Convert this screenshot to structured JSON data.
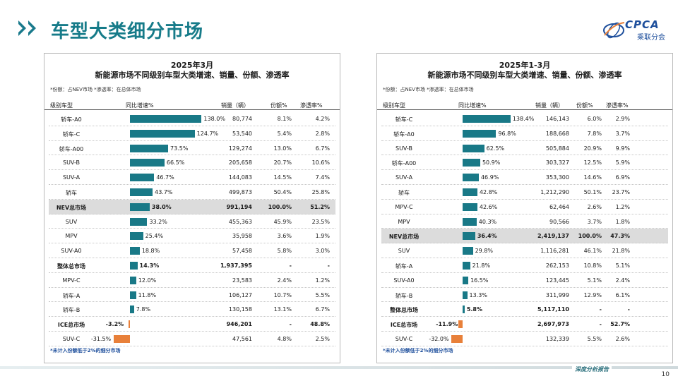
{
  "header": {
    "title": "车型大类细分市场",
    "logo_text": "CPCA",
    "logo_sub": "乘联分会"
  },
  "colors": {
    "accent": "#167b89",
    "bar_positive": "#197987",
    "bar_negative": "#e8803a",
    "highlight_row": "#dcdcdc"
  },
  "footer": {
    "tag": "深度分析报告",
    "page": "10"
  },
  "panels": [
    {
      "title1": "2025年3月",
      "title2": "新能源市场不同级别车型大类增速、销量、份额、渗透率",
      "note": "*份额：占NEV市场  *渗透率：在总体市场",
      "headers": {
        "cat": "级别车型",
        "growth": "同比增速%",
        "sales": "销量（辆）",
        "share": "份额%",
        "pen": "渗透率%"
      },
      "footnote": "*未计入份额低于2%的细分市场",
      "rows": [
        {
          "cat": "轿车-A0",
          "growth": 138.0,
          "growth_label": "138.0%",
          "sales": "80,774",
          "share": "8.1%",
          "pen": "4.2%",
          "style": ""
        },
        {
          "cat": "轿车-C",
          "growth": 124.7,
          "growth_label": "124.7%",
          "sales": "53,540",
          "share": "5.4%",
          "pen": "2.8%",
          "style": ""
        },
        {
          "cat": "轿车-A00",
          "growth": 73.5,
          "growth_label": "73.5%",
          "sales": "129,274",
          "share": "13.0%",
          "pen": "6.7%",
          "style": ""
        },
        {
          "cat": "SUV-B",
          "growth": 66.5,
          "growth_label": "66.5%",
          "sales": "205,658",
          "share": "20.7%",
          "pen": "10.6%",
          "style": ""
        },
        {
          "cat": "SUV-A",
          "growth": 46.7,
          "growth_label": "46.7%",
          "sales": "144,083",
          "share": "14.5%",
          "pen": "7.4%",
          "style": ""
        },
        {
          "cat": "轿车",
          "growth": 43.7,
          "growth_label": "43.7%",
          "sales": "499,873",
          "share": "50.4%",
          "pen": "25.8%",
          "style": ""
        },
        {
          "cat": "NEV总市场",
          "growth": 38.0,
          "growth_label": "38.0%",
          "sales": "991,194",
          "share": "100.0%",
          "pen": "51.2%",
          "style": "hl"
        },
        {
          "cat": "SUV",
          "growth": 33.2,
          "growth_label": "33.2%",
          "sales": "455,363",
          "share": "45.9%",
          "pen": "23.5%",
          "style": ""
        },
        {
          "cat": "MPV",
          "growth": 25.4,
          "growth_label": "25.4%",
          "sales": "35,958",
          "share": "3.6%",
          "pen": "1.9%",
          "style": ""
        },
        {
          "cat": "SUV-A0",
          "growth": 18.8,
          "growth_label": "18.8%",
          "sales": "57,458",
          "share": "5.8%",
          "pen": "3.0%",
          "style": ""
        },
        {
          "cat": "整体总市场",
          "growth": 14.3,
          "growth_label": "14.3%",
          "sales": "1,937,395",
          "share": "-",
          "pen": "-",
          "style": "bold"
        },
        {
          "cat": "MPV-C",
          "growth": 12.0,
          "growth_label": "12.0%",
          "sales": "23,583",
          "share": "2.4%",
          "pen": "1.2%",
          "style": ""
        },
        {
          "cat": "轿车-A",
          "growth": 11.8,
          "growth_label": "11.8%",
          "sales": "106,127",
          "share": "10.7%",
          "pen": "5.5%",
          "style": ""
        },
        {
          "cat": "轿车-B",
          "growth": 7.8,
          "growth_label": "7.8%",
          "sales": "130,158",
          "share": "13.1%",
          "pen": "6.7%",
          "style": ""
        },
        {
          "cat": "ICE总市场",
          "growth": -3.2,
          "growth_label": "-3.2%",
          "sales": "946,201",
          "share": "-",
          "pen": "48.8%",
          "style": "bold"
        },
        {
          "cat": "SUV-C",
          "growth": -31.5,
          "growth_label": "-31.5%",
          "sales": "47,561",
          "share": "4.8%",
          "pen": "2.5%",
          "style": ""
        }
      ]
    },
    {
      "title1": "2025年1-3月",
      "title2": "新能源市场不同级别车型大类增速、销量、份额、渗透率",
      "note": "*份额：占NEV市场  *渗透率：在总体市场",
      "headers": {
        "cat": "级别车型",
        "growth": "同比增速%",
        "sales": "销量（辆）",
        "share": "份额%",
        "pen": "渗透率%"
      },
      "footnote": "*未计入份额低于2%的细分市场",
      "rows": [
        {
          "cat": "轿车-C",
          "growth": 138.4,
          "growth_label": "138.4%",
          "sales": "146,143",
          "share": "6.0%",
          "pen": "2.9%",
          "style": ""
        },
        {
          "cat": "轿车-A0",
          "growth": 96.8,
          "growth_label": "96.8%",
          "sales": "188,668",
          "share": "7.8%",
          "pen": "3.7%",
          "style": ""
        },
        {
          "cat": "SUV-B",
          "growth": 62.5,
          "growth_label": "62.5%",
          "sales": "505,884",
          "share": "20.9%",
          "pen": "9.9%",
          "style": ""
        },
        {
          "cat": "轿车-A00",
          "growth": 50.9,
          "growth_label": "50.9%",
          "sales": "303,327",
          "share": "12.5%",
          "pen": "5.9%",
          "style": ""
        },
        {
          "cat": "SUV-A",
          "growth": 46.9,
          "growth_label": "46.9%",
          "sales": "353,300",
          "share": "14.6%",
          "pen": "6.9%",
          "style": ""
        },
        {
          "cat": "轿车",
          "growth": 42.8,
          "growth_label": "42.8%",
          "sales": "1,212,290",
          "share": "50.1%",
          "pen": "23.7%",
          "style": ""
        },
        {
          "cat": "MPV-C",
          "growth": 42.6,
          "growth_label": "42.6%",
          "sales": "62,464",
          "share": "2.6%",
          "pen": "1.2%",
          "style": ""
        },
        {
          "cat": "MPV",
          "growth": 40.3,
          "growth_label": "40.3%",
          "sales": "90,566",
          "share": "3.7%",
          "pen": "1.8%",
          "style": ""
        },
        {
          "cat": "NEV总市场",
          "growth": 36.4,
          "growth_label": "36.4%",
          "sales": "2,419,137",
          "share": "100.0%",
          "pen": "47.3%",
          "style": "hl"
        },
        {
          "cat": "SUV",
          "growth": 29.8,
          "growth_label": "29.8%",
          "sales": "1,116,281",
          "share": "46.1%",
          "pen": "21.8%",
          "style": ""
        },
        {
          "cat": "轿车-A",
          "growth": 21.8,
          "growth_label": "21.8%",
          "sales": "262,153",
          "share": "10.8%",
          "pen": "5.1%",
          "style": ""
        },
        {
          "cat": "SUV-A0",
          "growth": 16.5,
          "growth_label": "16.5%",
          "sales": "123,445",
          "share": "5.1%",
          "pen": "2.4%",
          "style": ""
        },
        {
          "cat": "轿车-B",
          "growth": 13.3,
          "growth_label": "13.3%",
          "sales": "311,999",
          "share": "12.9%",
          "pen": "6.1%",
          "style": ""
        },
        {
          "cat": "整体总市场",
          "growth": 5.8,
          "growth_label": "5.8%",
          "sales": "5,117,110",
          "share": "-",
          "pen": "-",
          "style": "bold"
        },
        {
          "cat": "ICE总市场",
          "growth": -11.9,
          "growth_label": "-11.9%",
          "sales": "2,697,973",
          "share": "-",
          "pen": "52.7%",
          "style": "bold"
        },
        {
          "cat": "SUV-C",
          "growth": -32.0,
          "growth_label": "-32.0%",
          "sales": "132,339",
          "share": "5.5%",
          "pen": "2.6%",
          "style": ""
        }
      ]
    }
  ]
}
